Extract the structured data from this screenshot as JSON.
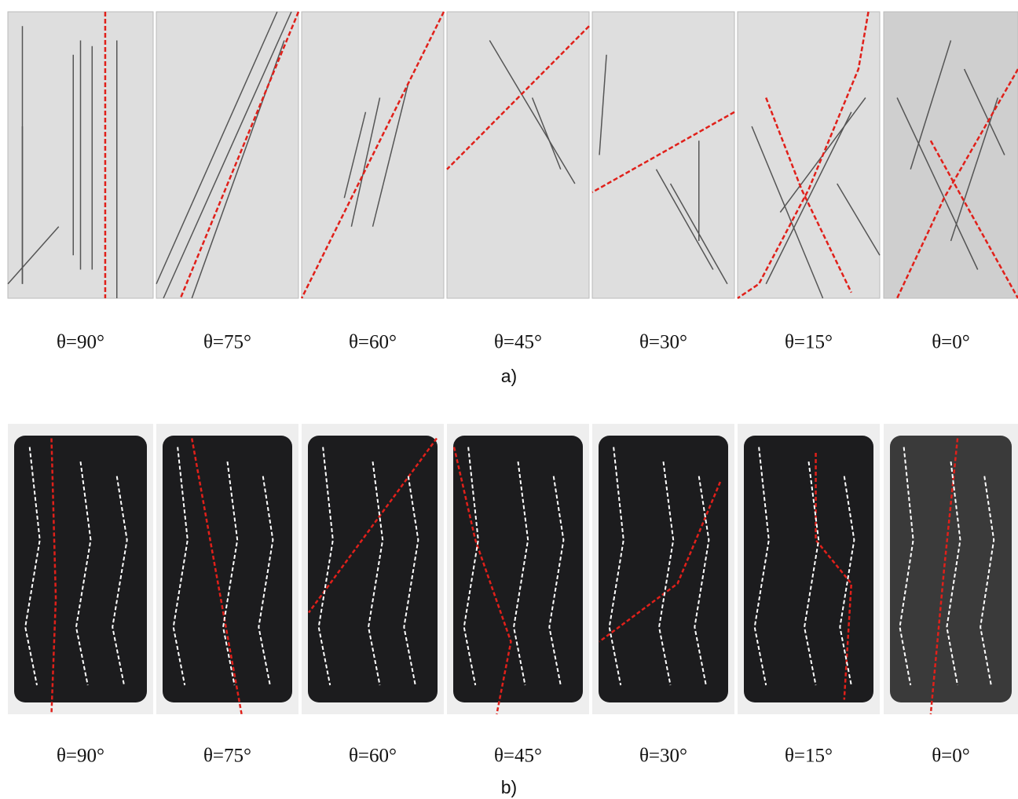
{
  "figure": {
    "panel_a": {
      "labels": [
        "θ=90°",
        "θ=75°",
        "θ=60°",
        "θ=45°",
        "θ=30°",
        "θ=15°",
        "θ=0°"
      ],
      "caption": "a)"
    },
    "panel_b": {
      "labels": [
        "θ=90°",
        "θ=75°",
        "θ=60°",
        "θ=45°",
        "θ=30°",
        "θ=15°",
        "θ=0°"
      ],
      "caption": "b)"
    }
  }
}
